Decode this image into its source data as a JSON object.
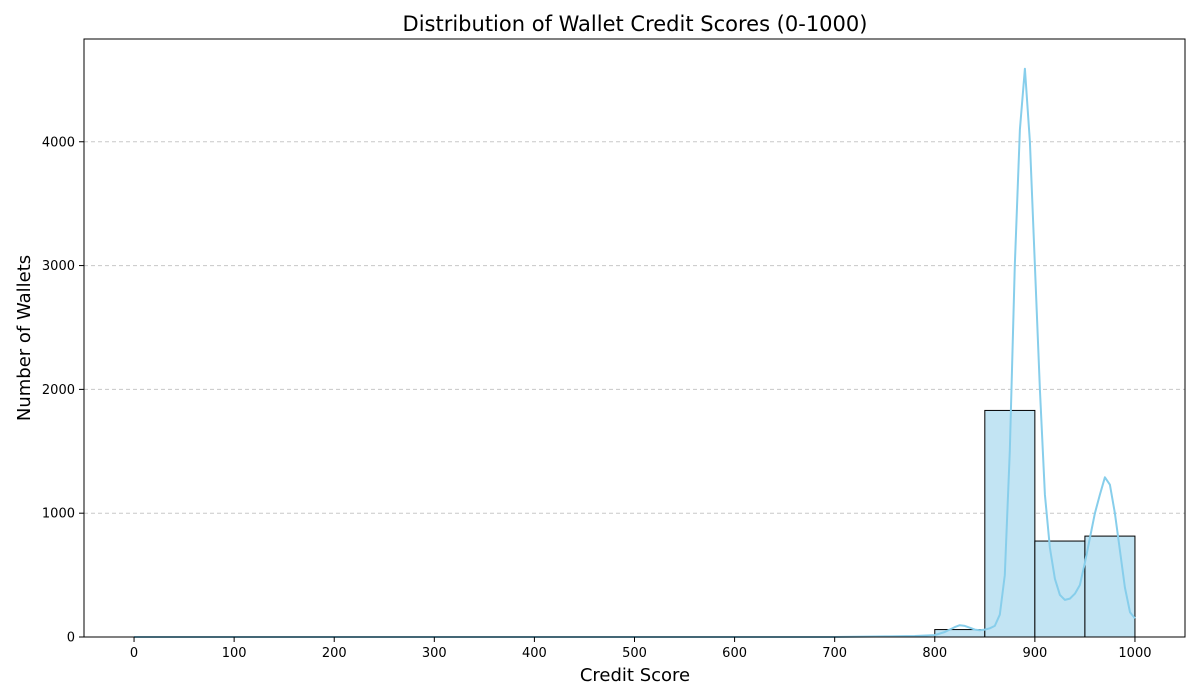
{
  "chart_data": {
    "type": "bar",
    "title": "Distribution of Wallet Credit Scores (0-1000)",
    "xlabel": "Credit Score",
    "ylabel": "Number of Wallets",
    "xlim": [
      -50,
      1050
    ],
    "ylim": [
      0,
      4830
    ],
    "x_ticks": [
      0,
      100,
      200,
      300,
      400,
      500,
      600,
      700,
      800,
      900,
      1000
    ],
    "y_ticks": [
      0,
      1000,
      2000,
      3000,
      4000
    ],
    "grid": "y-dashed",
    "legend": "none",
    "bins": [
      {
        "start": 800,
        "end": 850,
        "count": 60
      },
      {
        "start": 850,
        "end": 900,
        "count": 1830
      },
      {
        "start": 900,
        "end": 950,
        "count": 775
      },
      {
        "start": 950,
        "end": 1000,
        "count": 815
      }
    ],
    "kde": {
      "x": [
        0,
        700,
        750,
        780,
        800,
        810,
        820,
        825,
        830,
        835,
        840,
        845,
        850,
        855,
        860,
        865,
        870,
        875,
        880,
        885,
        890,
        895,
        900,
        905,
        910,
        915,
        920,
        925,
        930,
        935,
        940,
        945,
        950,
        955,
        960,
        965,
        970,
        975,
        980,
        985,
        990,
        995,
        1000
      ],
      "y": [
        0,
        0,
        5,
        8,
        15,
        40,
        80,
        95,
        90,
        75,
        60,
        55,
        60,
        70,
        90,
        180,
        500,
        1500,
        3000,
        4100,
        4590,
        4000,
        3000,
        2000,
        1150,
        720,
        470,
        340,
        300,
        310,
        350,
        420,
        600,
        800,
        1000,
        1150,
        1290,
        1230,
        1000,
        700,
        400,
        200,
        150
      ]
    },
    "colors": {
      "bar_fill": "#c2e4f3",
      "bar_edge": "#000000",
      "kde_line": "#87ceeb",
      "grid": "#c8c8c8"
    }
  }
}
